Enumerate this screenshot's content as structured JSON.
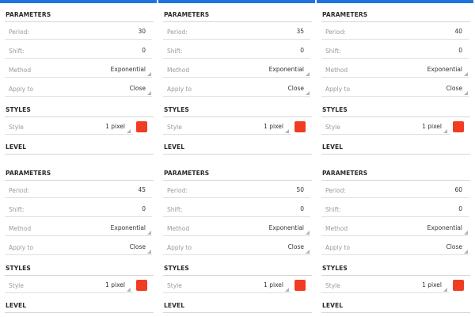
{
  "accent_color": "#1f73e0",
  "swatch_color": "#f03c22",
  "labels": {
    "parameters": "PARAMETERS",
    "styles": "STYLES",
    "level": "LEVEL",
    "period": "Period:",
    "shift": "Shift:",
    "method": "Method",
    "apply_to": "Apply to",
    "style": "Style"
  },
  "panels": [
    {
      "period": "30",
      "shift": "0",
      "method": "Exponential",
      "apply_to": "Close",
      "style": "1 pixel"
    },
    {
      "period": "35",
      "shift": "0",
      "method": "Exponential",
      "apply_to": "Close",
      "style": "1 pixel"
    },
    {
      "period": "40",
      "shift": "0",
      "method": "Exponential",
      "apply_to": "Close",
      "style": "1 pixel"
    },
    {
      "period": "45",
      "shift": "0",
      "method": "Exponential",
      "apply_to": "Close",
      "style": "1 pixel"
    },
    {
      "period": "50",
      "shift": "0",
      "method": "Exponential",
      "apply_to": "Close",
      "style": "1 pixel"
    },
    {
      "period": "60",
      "shift": "0",
      "method": "Exponential",
      "apply_to": "Close",
      "style": "1 pixel"
    }
  ]
}
